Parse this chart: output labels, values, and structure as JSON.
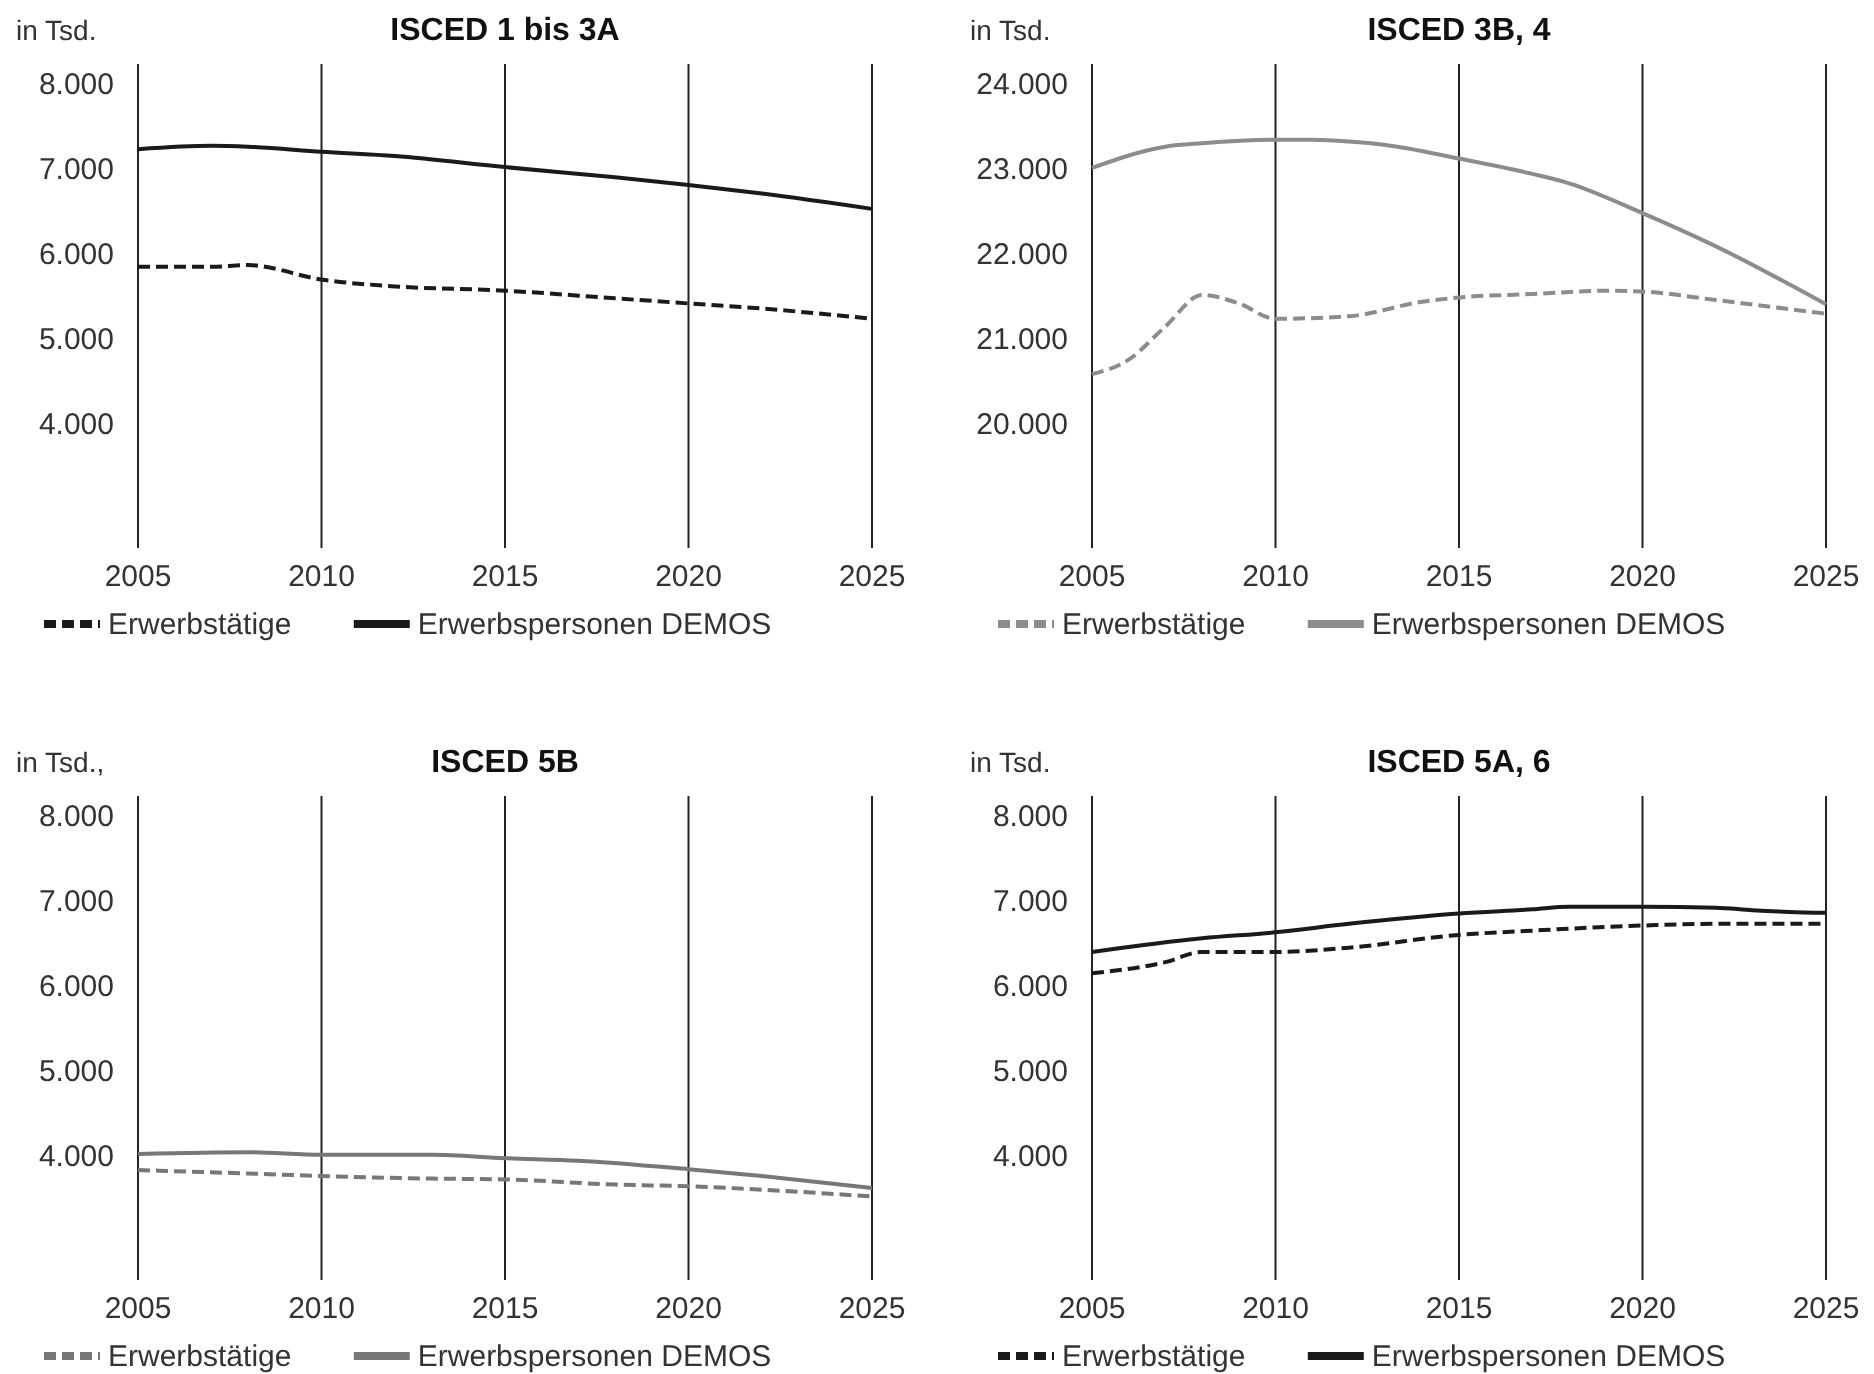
{
  "chart_data": [
    {
      "type": "line",
      "title": "ISCED 1 bis 3A",
      "ylabel": "in Tsd.",
      "xlim": [
        2005,
        2025
      ],
      "xticks": [
        2005,
        2010,
        2015,
        2020,
        2025
      ],
      "ylim": [
        2550,
        8230
      ],
      "yticks": [
        {
          "value": 4000,
          "label": "4.000"
        },
        {
          "value": 5000,
          "label": "5.000"
        },
        {
          "value": 6000,
          "label": "6.000"
        },
        {
          "value": 7000,
          "label": "7.000"
        },
        {
          "value": 8000,
          "label": "8.000"
        }
      ],
      "grid": "x",
      "legend": "bottom",
      "series": [
        {
          "name": "Erwerbstätige",
          "color": "#1a1a1a",
          "line_style": "dashed",
          "x": [
            2005,
            2007,
            2008,
            2010,
            2012,
            2015,
            2018,
            2020,
            2022,
            2025
          ],
          "values": [
            5850,
            5850,
            5870,
            5700,
            5620,
            5570,
            5480,
            5420,
            5360,
            5240
          ]
        },
        {
          "name": "Erwerbspersonen DEMOS",
          "color": "#1a1a1a",
          "line_style": "solid",
          "x": [
            2005,
            2007,
            2008,
            2010,
            2012,
            2015,
            2018,
            2020,
            2022,
            2025
          ],
          "values": [
            7230,
            7270,
            7260,
            7200,
            7150,
            7020,
            6900,
            6810,
            6710,
            6530
          ]
        }
      ]
    },
    {
      "type": "line",
      "title": "ISCED 3B, 4",
      "ylabel": "in Tsd.",
      "xlim": [
        2005,
        2025
      ],
      "xticks": [
        2005,
        2010,
        2015,
        2020,
        2025
      ],
      "ylim": [
        18550,
        24230
      ],
      "yticks": [
        {
          "value": 20000,
          "label": "20.000"
        },
        {
          "value": 21000,
          "label": "21.000"
        },
        {
          "value": 22000,
          "label": "22.000"
        },
        {
          "value": 23000,
          "label": "23.000"
        },
        {
          "value": 24000,
          "label": "24.000"
        }
      ],
      "grid": "x",
      "legend": "bottom",
      "series": [
        {
          "name": "Erwerbstätige",
          "color": "#8c8c8c",
          "line_style": "dashed",
          "x": [
            2005,
            2006,
            2007,
            2008,
            2009,
            2010,
            2012,
            2014,
            2015,
            2017,
            2019,
            2020,
            2022,
            2025
          ],
          "values": [
            20590,
            20760,
            21150,
            21520,
            21420,
            21240,
            21270,
            21440,
            21490,
            21530,
            21570,
            21560,
            21460,
            21300
          ]
        },
        {
          "name": "Erwerbspersonen DEMOS",
          "color": "#8c8c8c",
          "line_style": "solid",
          "x": [
            2005,
            2007,
            2008,
            2010,
            2011,
            2012,
            2013,
            2015,
            2017,
            2018,
            2020,
            2022,
            2025
          ],
          "values": [
            23010,
            23260,
            23300,
            23340,
            23340,
            23320,
            23280,
            23120,
            22940,
            22830,
            22480,
            22090,
            21410
          ]
        }
      ]
    },
    {
      "type": "line",
      "title": "ISCED 5B",
      "ylabel": "in Tsd.,",
      "xlim": [
        2005,
        2025
      ],
      "xticks": [
        2005,
        2010,
        2015,
        2020,
        2025
      ],
      "ylim": [
        2550,
        8230
      ],
      "yticks": [
        {
          "value": 4000,
          "label": "4.000"
        },
        {
          "value": 5000,
          "label": "5.000"
        },
        {
          "value": 6000,
          "label": "6.000"
        },
        {
          "value": 7000,
          "label": "7.000"
        },
        {
          "value": 8000,
          "label": "8.000"
        }
      ],
      "grid": "x",
      "legend": "bottom",
      "series": [
        {
          "name": "Erwerbstätige",
          "color": "#777777",
          "line_style": "dashed",
          "x": [
            2005,
            2008,
            2010,
            2013,
            2015,
            2018,
            2020,
            2022,
            2025
          ],
          "values": [
            3840,
            3800,
            3770,
            3740,
            3730,
            3670,
            3650,
            3610,
            3530
          ]
        },
        {
          "name": "Erwerbspersonen DEMOS",
          "color": "#777777",
          "line_style": "solid",
          "x": [
            2005,
            2008,
            2010,
            2013,
            2015,
            2017,
            2020,
            2022,
            2025
          ],
          "values": [
            4030,
            4050,
            4020,
            4020,
            3980,
            3950,
            3850,
            3770,
            3630
          ]
        }
      ]
    },
    {
      "type": "line",
      "title": "ISCED 5A, 6",
      "ylabel": "in Tsd.",
      "xlim": [
        2005,
        2025
      ],
      "xticks": [
        2005,
        2010,
        2015,
        2020,
        2025
      ],
      "ylim": [
        2550,
        8230
      ],
      "yticks": [
        {
          "value": 4000,
          "label": "4.000"
        },
        {
          "value": 5000,
          "label": "5.000"
        },
        {
          "value": 6000,
          "label": "6.000"
        },
        {
          "value": 7000,
          "label": "7.000"
        },
        {
          "value": 8000,
          "label": "8.000"
        }
      ],
      "grid": "x",
      "legend": "bottom",
      "series": [
        {
          "name": "Erwerbstätige",
          "color": "#1a1a1a",
          "line_style": "dashed",
          "x": [
            2005,
            2007,
            2008,
            2010,
            2012,
            2015,
            2017,
            2020,
            2022,
            2025
          ],
          "values": [
            6150,
            6280,
            6400,
            6400,
            6450,
            6600,
            6650,
            6710,
            6730,
            6730
          ]
        },
        {
          "name": "Erwerbspersonen DEMOS",
          "color": "#1a1a1a",
          "line_style": "solid",
          "x": [
            2005,
            2008,
            2010,
            2012,
            2015,
            2017,
            2018,
            2020,
            2022,
            2023,
            2024,
            2025
          ],
          "values": [
            6400,
            6560,
            6630,
            6730,
            6850,
            6900,
            6930,
            6930,
            6920,
            6890,
            6870,
            6860
          ]
        }
      ]
    }
  ]
}
